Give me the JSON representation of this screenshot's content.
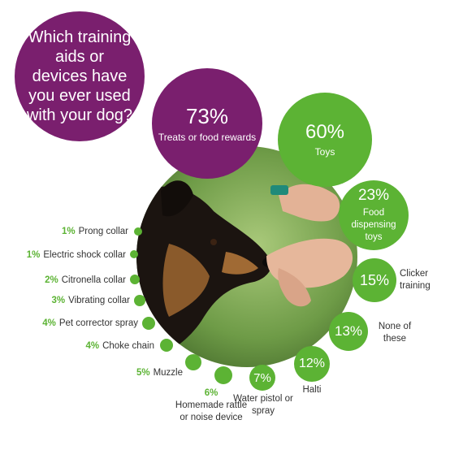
{
  "question": "Which training aids or devices have you ever used with your dog?",
  "chart_data": {
    "type": "bubble",
    "title": "Which training aids or devices have you ever used with your dog?",
    "unit": "%",
    "categories": [
      "Treats or food rewards",
      "Toys",
      "Food dispensing toys",
      "Clicker training",
      "None of these",
      "Halti",
      "Water pistol or spray",
      "Homemade rattle or noise device",
      "Muzzle",
      "Choke chain",
      "Pet corrector spray",
      "Vibrating collar",
      "Citronella collar",
      "Electric shock collar",
      "Prong collar"
    ],
    "values": [
      73,
      60,
      23,
      15,
      13,
      12,
      7,
      6,
      5,
      4,
      4,
      3,
      2,
      1,
      1
    ],
    "labels": [
      "73%",
      "60%",
      "23%",
      "15%",
      "13%",
      "12%",
      "7%",
      "6%",
      "5%",
      "4%",
      "4%",
      "3%",
      "2%",
      "1%",
      "1%"
    ],
    "colors": {
      "highlight": "#7a1f6e",
      "default": "#5cb334"
    },
    "highlight_index": 0
  }
}
